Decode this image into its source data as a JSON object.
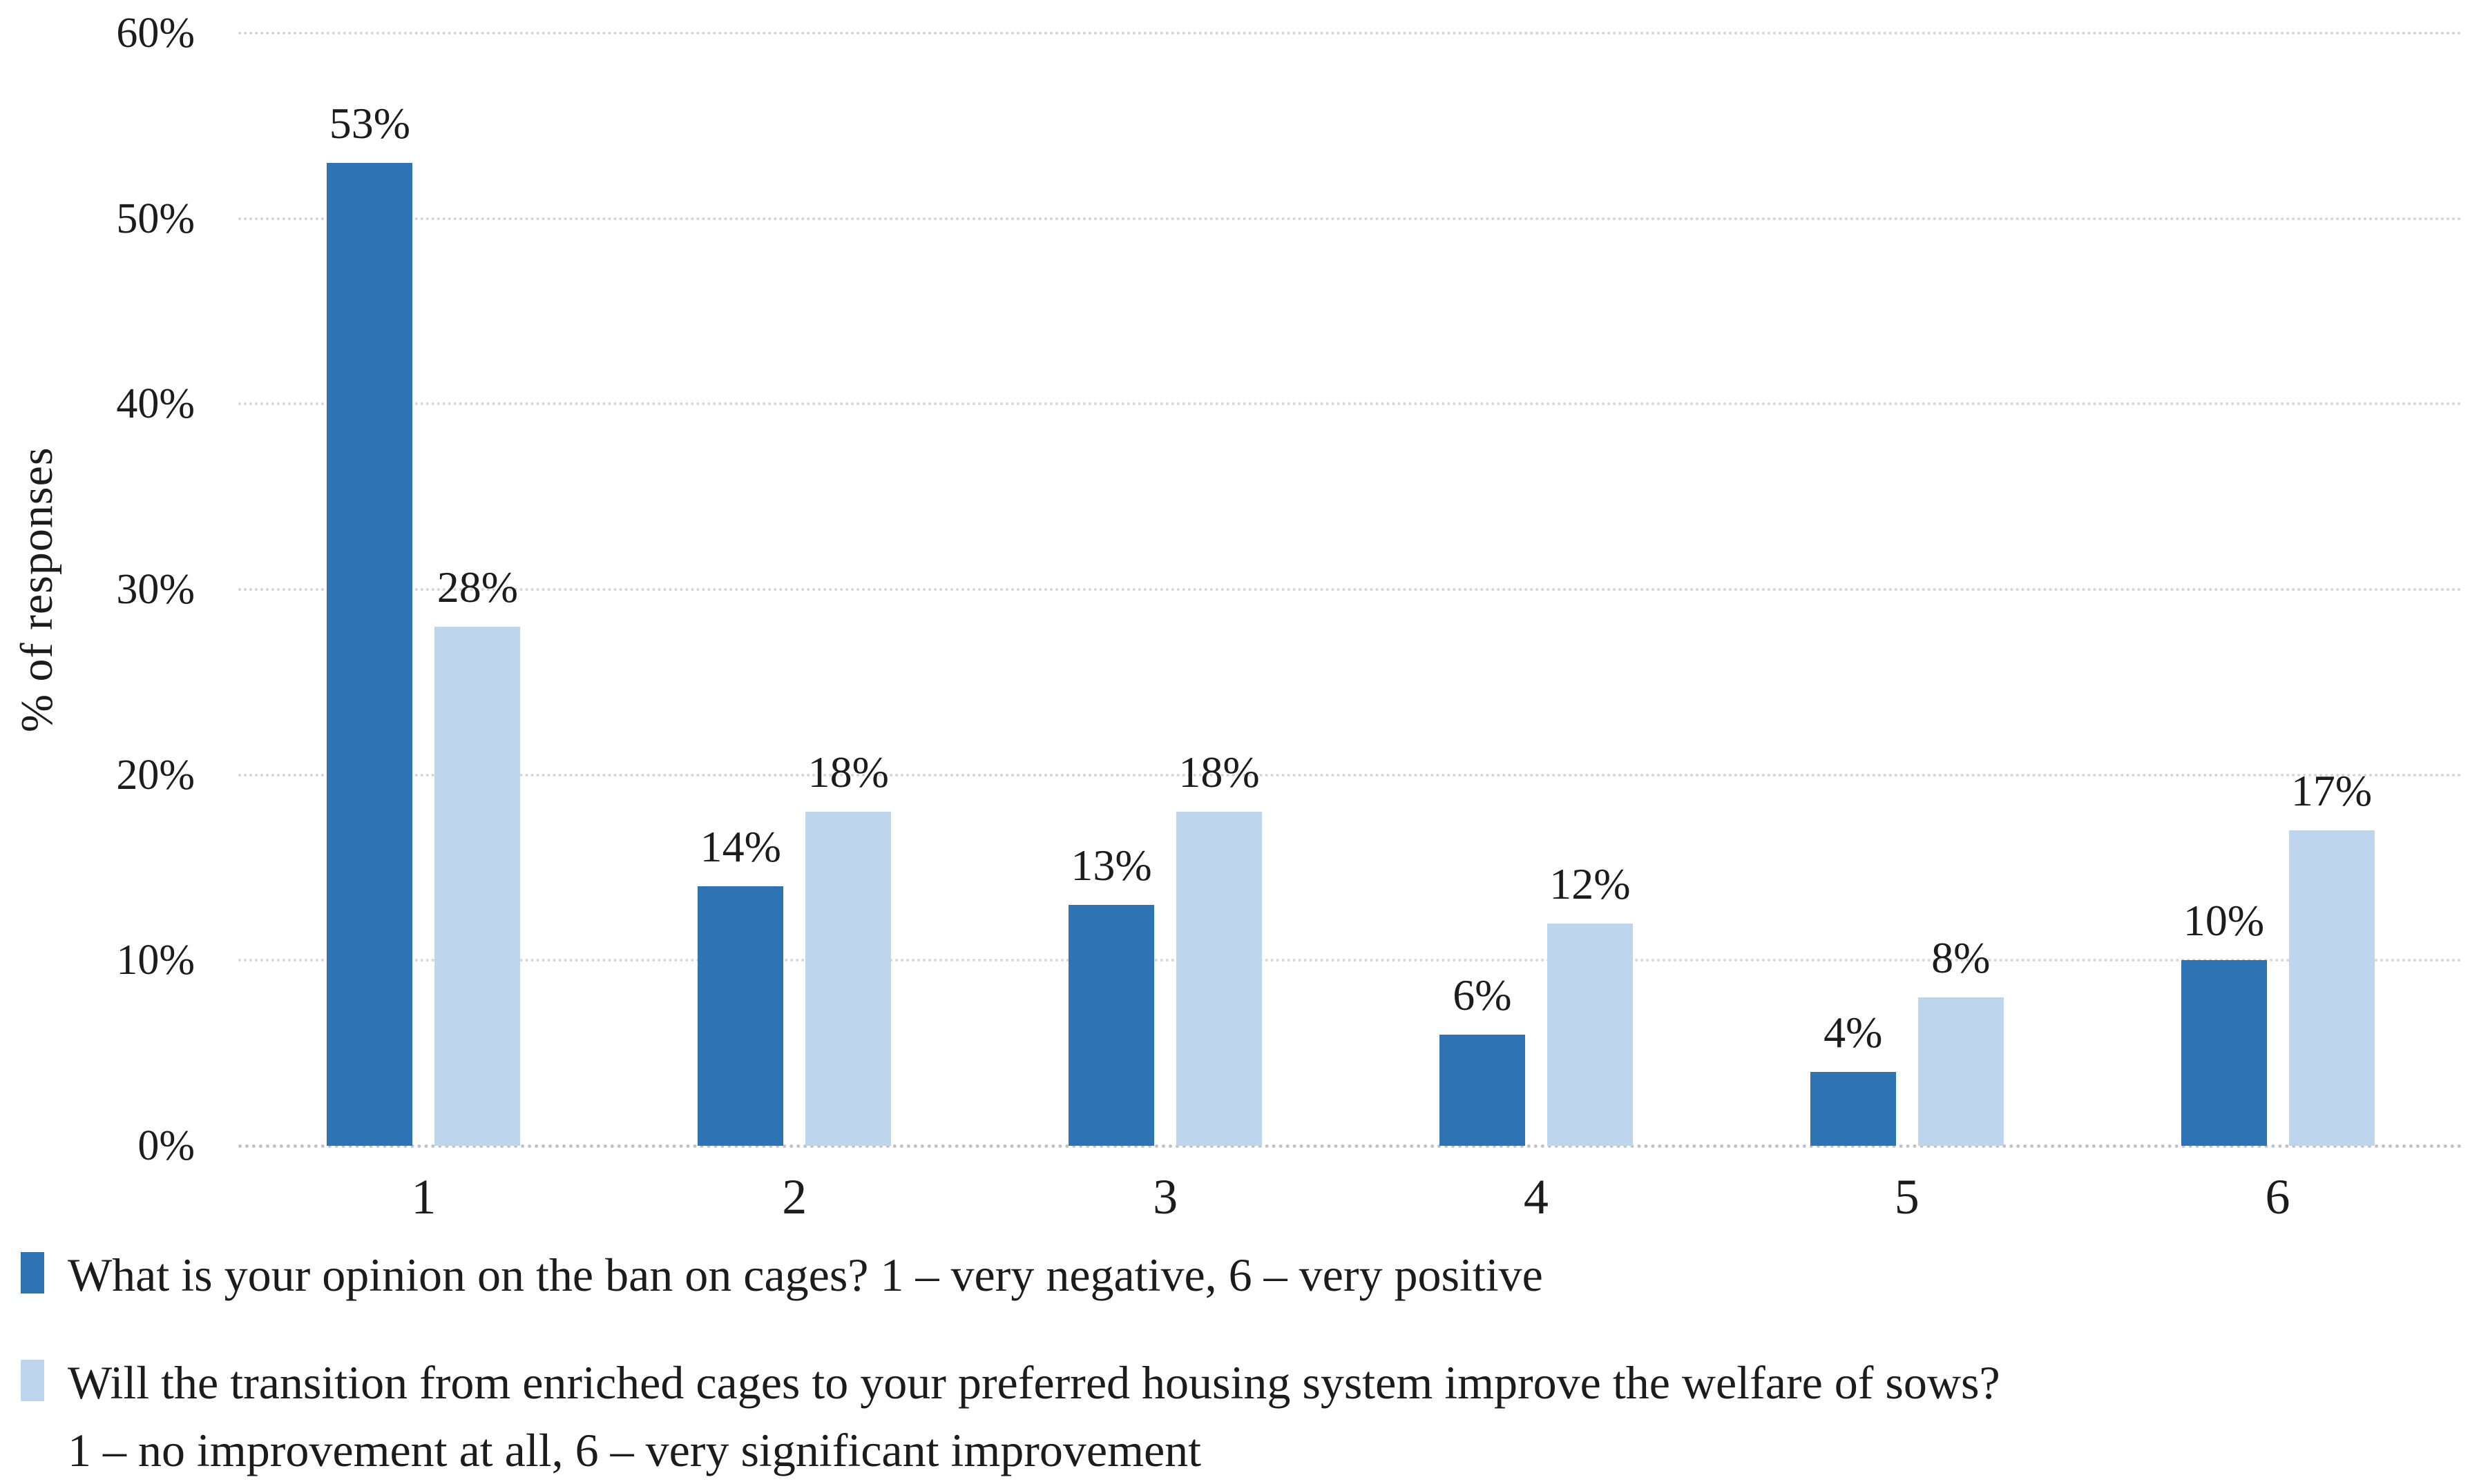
{
  "chart_data": {
    "type": "bar",
    "categories": [
      "1",
      "2",
      "3",
      "4",
      "5",
      "6"
    ],
    "series": [
      {
        "name": "What is your opinion on the ban on cages? 1 – very negative, 6 – very positive",
        "color": "#2E74B5",
        "values": [
          53,
          14,
          13,
          6,
          4,
          10
        ],
        "data_labels": [
          "53%",
          "14%",
          "13%",
          "6%",
          "4%",
          "10%"
        ]
      },
      {
        "name": "Will the transition from enriched cages to your preferred housing system improve the welfare of sows? 1 – no improvement at all, 6 – very significant improvement",
        "color": "#BDD6EE",
        "values": [
          28,
          18,
          18,
          12,
          8,
          17
        ],
        "data_labels": [
          "28%",
          "18%",
          "18%",
          "12%",
          "8%",
          "17%"
        ]
      }
    ],
    "title": "",
    "xlabel": "",
    "ylabel": "% of responses",
    "ylim": [
      0,
      60
    ],
    "yticks": [
      "0%",
      "10%",
      "20%",
      "30%",
      "40%",
      "50%",
      "60%"
    ],
    "grid": true,
    "legend_position": "bottom",
    "legend": [
      {
        "color": "#2E74B5",
        "lines": [
          "What is your opinion on the ban on cages? 1 – very negative, 6 – very positive"
        ]
      },
      {
        "color": "#BDD6EE",
        "lines": [
          "Will the transition from enriched cages to your preferred housing system improve the welfare of sows?",
          "1 – no improvement at all, 6 – very significant improvement"
        ]
      }
    ],
    "colors": {
      "grid": "#D6D6D6",
      "baseline": "#C2C2C2",
      "text": "#1C1C1C"
    }
  }
}
